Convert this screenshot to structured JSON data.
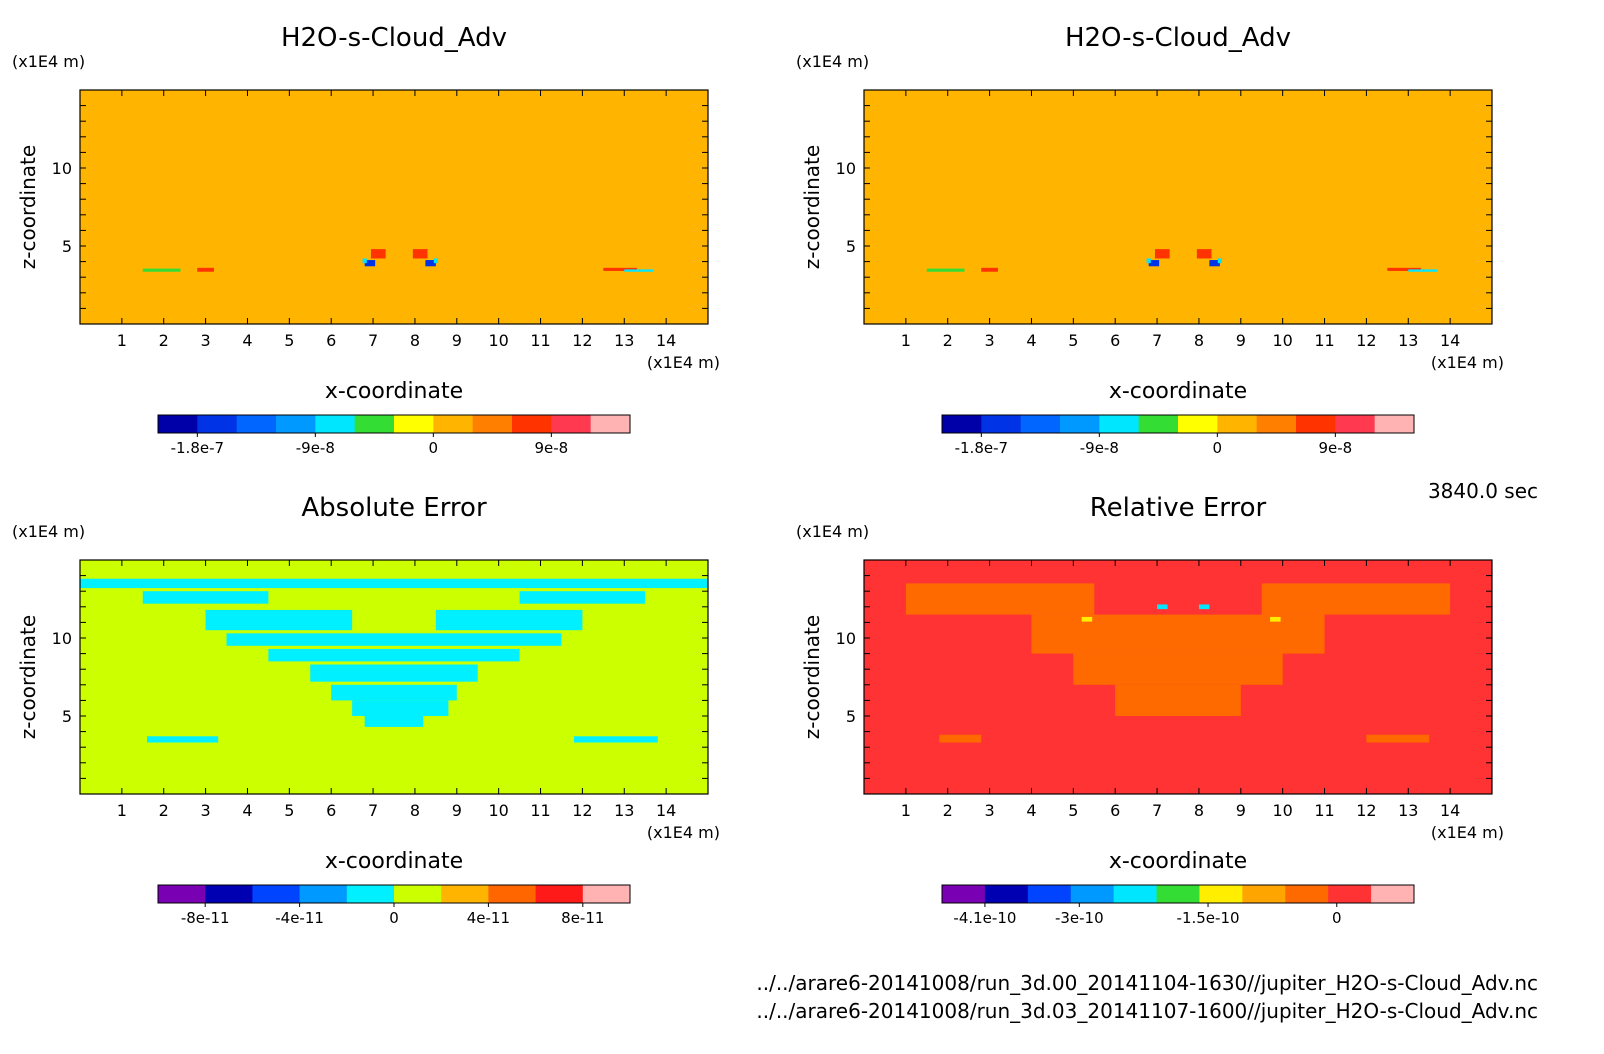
{
  "time_label": "3840.0 sec",
  "source_files": [
    "../../arare6-20141008/run_3d.00_20141104-1630//jupiter_H2O-s-Cloud_Adv.nc",
    "../../arare6-20141008/run_3d.03_20141107-1600//jupiter_H2O-s-Cloud_Adv.nc"
  ],
  "chart_data": [
    {
      "type": "heatmap",
      "title": "H2O-s-Cloud_Adv",
      "xlabel": "x-coordinate",
      "ylabel": "z-coordinate",
      "x_unit": "(x1E4 m)",
      "z_unit": "(x1E4 m)",
      "xlim": [
        0,
        15
      ],
      "zlim": [
        0,
        15
      ],
      "xticks": [
        1,
        2,
        3,
        4,
        5,
        6,
        7,
        8,
        9,
        10,
        11,
        12,
        13,
        14
      ],
      "zticks": [
        5,
        10
      ],
      "background_value": 0,
      "field_features": "mostly ~0; layer of small positive values at z≈13-14; eddies near x=7-8.5,z=4 with values -1.8e-7..9e-8; thin layers at z≈3.5 near x=2-3 and x=12-14",
      "colorbar": {
        "levels": [
          -2.1e-07,
          -1.8e-07,
          -1.5e-07,
          -1.2e-07,
          -9e-08,
          -6e-08,
          -3e-08,
          0,
          3e-08,
          6e-08,
          9e-08,
          1.2e-07,
          1.35e-07
        ],
        "colors": [
          "#0000a8",
          "#0033e6",
          "#0066ff",
          "#0099ff",
          "#00e6ff",
          "#33dd33",
          "#ffff00",
          "#ffb400",
          "#ff8000",
          "#ff3300",
          "#ff3a50",
          "#ffb3b3"
        ],
        "tick_labels": [
          "-1.8e-7",
          "-9e-8",
          "0",
          "9e-8"
        ],
        "tick_values": [
          -1.8e-07,
          -9e-08,
          0,
          9e-08
        ]
      }
    },
    {
      "type": "heatmap",
      "title": "H2O-s-Cloud_Adv",
      "xlabel": "x-coordinate",
      "ylabel": "z-coordinate",
      "x_unit": "(x1E4 m)",
      "z_unit": "(x1E4 m)",
      "xlim": [
        0,
        15
      ],
      "zlim": [
        0,
        15
      ],
      "xticks": [
        1,
        2,
        3,
        4,
        5,
        6,
        7,
        8,
        9,
        10,
        11,
        12,
        13,
        14
      ],
      "zticks": [
        5,
        10
      ],
      "background_value": 0,
      "field_features": "identical to first run",
      "colorbar": {
        "levels": [
          -2.1e-07,
          -1.8e-07,
          -1.5e-07,
          -1.2e-07,
          -9e-08,
          -6e-08,
          -3e-08,
          0,
          3e-08,
          6e-08,
          9e-08,
          1.2e-07,
          1.35e-07
        ],
        "colors": [
          "#0000a8",
          "#0033e6",
          "#0066ff",
          "#0099ff",
          "#00e6ff",
          "#33dd33",
          "#ffff00",
          "#ffb400",
          "#ff8000",
          "#ff3300",
          "#ff3a50",
          "#ffb3b3"
        ],
        "tick_labels": [
          "-1.8e-7",
          "-9e-8",
          "0",
          "9e-8"
        ],
        "tick_values": [
          -1.8e-07,
          -9e-08,
          0,
          9e-08
        ]
      }
    },
    {
      "type": "heatmap",
      "title": "Absolute Error",
      "xlabel": "x-coordinate",
      "ylabel": "z-coordinate",
      "x_unit": "(x1E4 m)",
      "z_unit": "(x1E4 m)",
      "xlim": [
        0,
        15
      ],
      "zlim": [
        0,
        15
      ],
      "xticks": [
        1,
        2,
        3,
        4,
        5,
        6,
        7,
        8,
        9,
        10,
        11,
        12,
        13,
        14
      ],
      "zticks": [
        5,
        10
      ],
      "background_value": 0,
      "field_features": "background bin 0..2e-11; cyan regions (-2e-11..0) in cloud layer and plume",
      "colorbar": {
        "levels": [
          -1e-10,
          -8e-11,
          -6e-11,
          -4e-11,
          -2e-11,
          0,
          2e-11,
          4e-11,
          6e-11,
          8e-11,
          1e-10
        ],
        "colors": [
          "#7a00b3",
          "#0000b3",
          "#0044ff",
          "#0099ff",
          "#00f0ff",
          "#ccff00",
          "#ffb400",
          "#ff6600",
          "#ff1a1a",
          "#ffb3b3"
        ],
        "tick_labels": [
          "-8e-11",
          "-4e-11",
          "0",
          "4e-11",
          "8e-11"
        ],
        "tick_values": [
          -8e-11,
          -4e-11,
          0,
          4e-11,
          8e-11
        ]
      }
    },
    {
      "type": "heatmap",
      "title": "Relative Error",
      "xlabel": "x-coordinate",
      "ylabel": "z-coordinate",
      "x_unit": "(x1E4 m)",
      "z_unit": "(x1E4 m)",
      "xlim": [
        0,
        15
      ],
      "zlim": [
        0,
        15
      ],
      "xticks": [
        1,
        2,
        3,
        4,
        5,
        6,
        7,
        8,
        9,
        10,
        11,
        12,
        13,
        14
      ],
      "zticks": [
        5,
        10
      ],
      "background_value": 0,
      "field_features": "background red bin (-1e-11..0); orange patches in cloud layer; sparse small spots",
      "colorbar": {
        "levels": [
          -4.4e-10,
          -4.1e-10,
          -3.6e-10,
          -3.1e-10,
          -2.6e-10,
          -2.1e-10,
          -1.6e-10,
          -1.1e-10,
          -6e-11,
          -1e-11,
          4e-11,
          9e-11
        ],
        "colors": [
          "#7a00b3",
          "#0000b3",
          "#0044ff",
          "#0099ff",
          "#00e6ff",
          "#33dd33",
          "#ffee00",
          "#ffa500",
          "#ff6a00",
          "#ff3333",
          "#ffb3b3"
        ],
        "tick_labels": [
          "-4.1e-10",
          "-3e-10",
          "-1.5e-10",
          "0"
        ],
        "tick_values": [
          -4.1e-10,
          -3e-10,
          -1.5e-10,
          0
        ]
      }
    }
  ]
}
